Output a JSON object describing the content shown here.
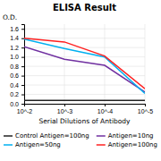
{
  "chart_data": {
    "type": "line",
    "title": "ELISA Result",
    "x_label": "Serial Dilutions of Antibody",
    "y_label": "O.D.",
    "x": [
      0.01,
      0.001,
      0.0001,
      1e-05
    ],
    "series": [
      {
        "name": "Control Antigen=100ng",
        "color": "#222222",
        "values": [
          0.07,
          0.07,
          0.07,
          0.07
        ]
      },
      {
        "name": "Antigen=10ng",
        "color": "#7030A0",
        "values": [
          1.22,
          0.95,
          0.82,
          0.25
        ]
      },
      {
        "name": "Antigen=50ng",
        "color": "#00B0F0",
        "values": [
          1.38,
          1.18,
          1.0,
          0.22
        ]
      },
      {
        "name": "Antigen=100ng",
        "color": "#FF2020",
        "values": [
          1.4,
          1.32,
          1.02,
          0.32
        ]
      }
    ],
    "log": "x",
    "xlim": [
      0.01,
      1e-05
    ],
    "xticks": [
      {
        "value": 0.01,
        "label": "10^-2"
      },
      {
        "value": 0.001,
        "label": "10^-3"
      },
      {
        "value": 0.0001,
        "label": "10^-4"
      },
      {
        "value": 1e-05,
        "label": "10^-5"
      }
    ],
    "ylim": [
      0,
      1.7
    ],
    "yticks": [
      {
        "value": 0,
        "label": "0.0"
      },
      0.2,
      0.4,
      0.6,
      0.8,
      {
        "value": 1.0,
        "label": "1.0"
      },
      1.2,
      1.4,
      1.6
    ],
    "grid": true,
    "legend": "bottom"
  }
}
